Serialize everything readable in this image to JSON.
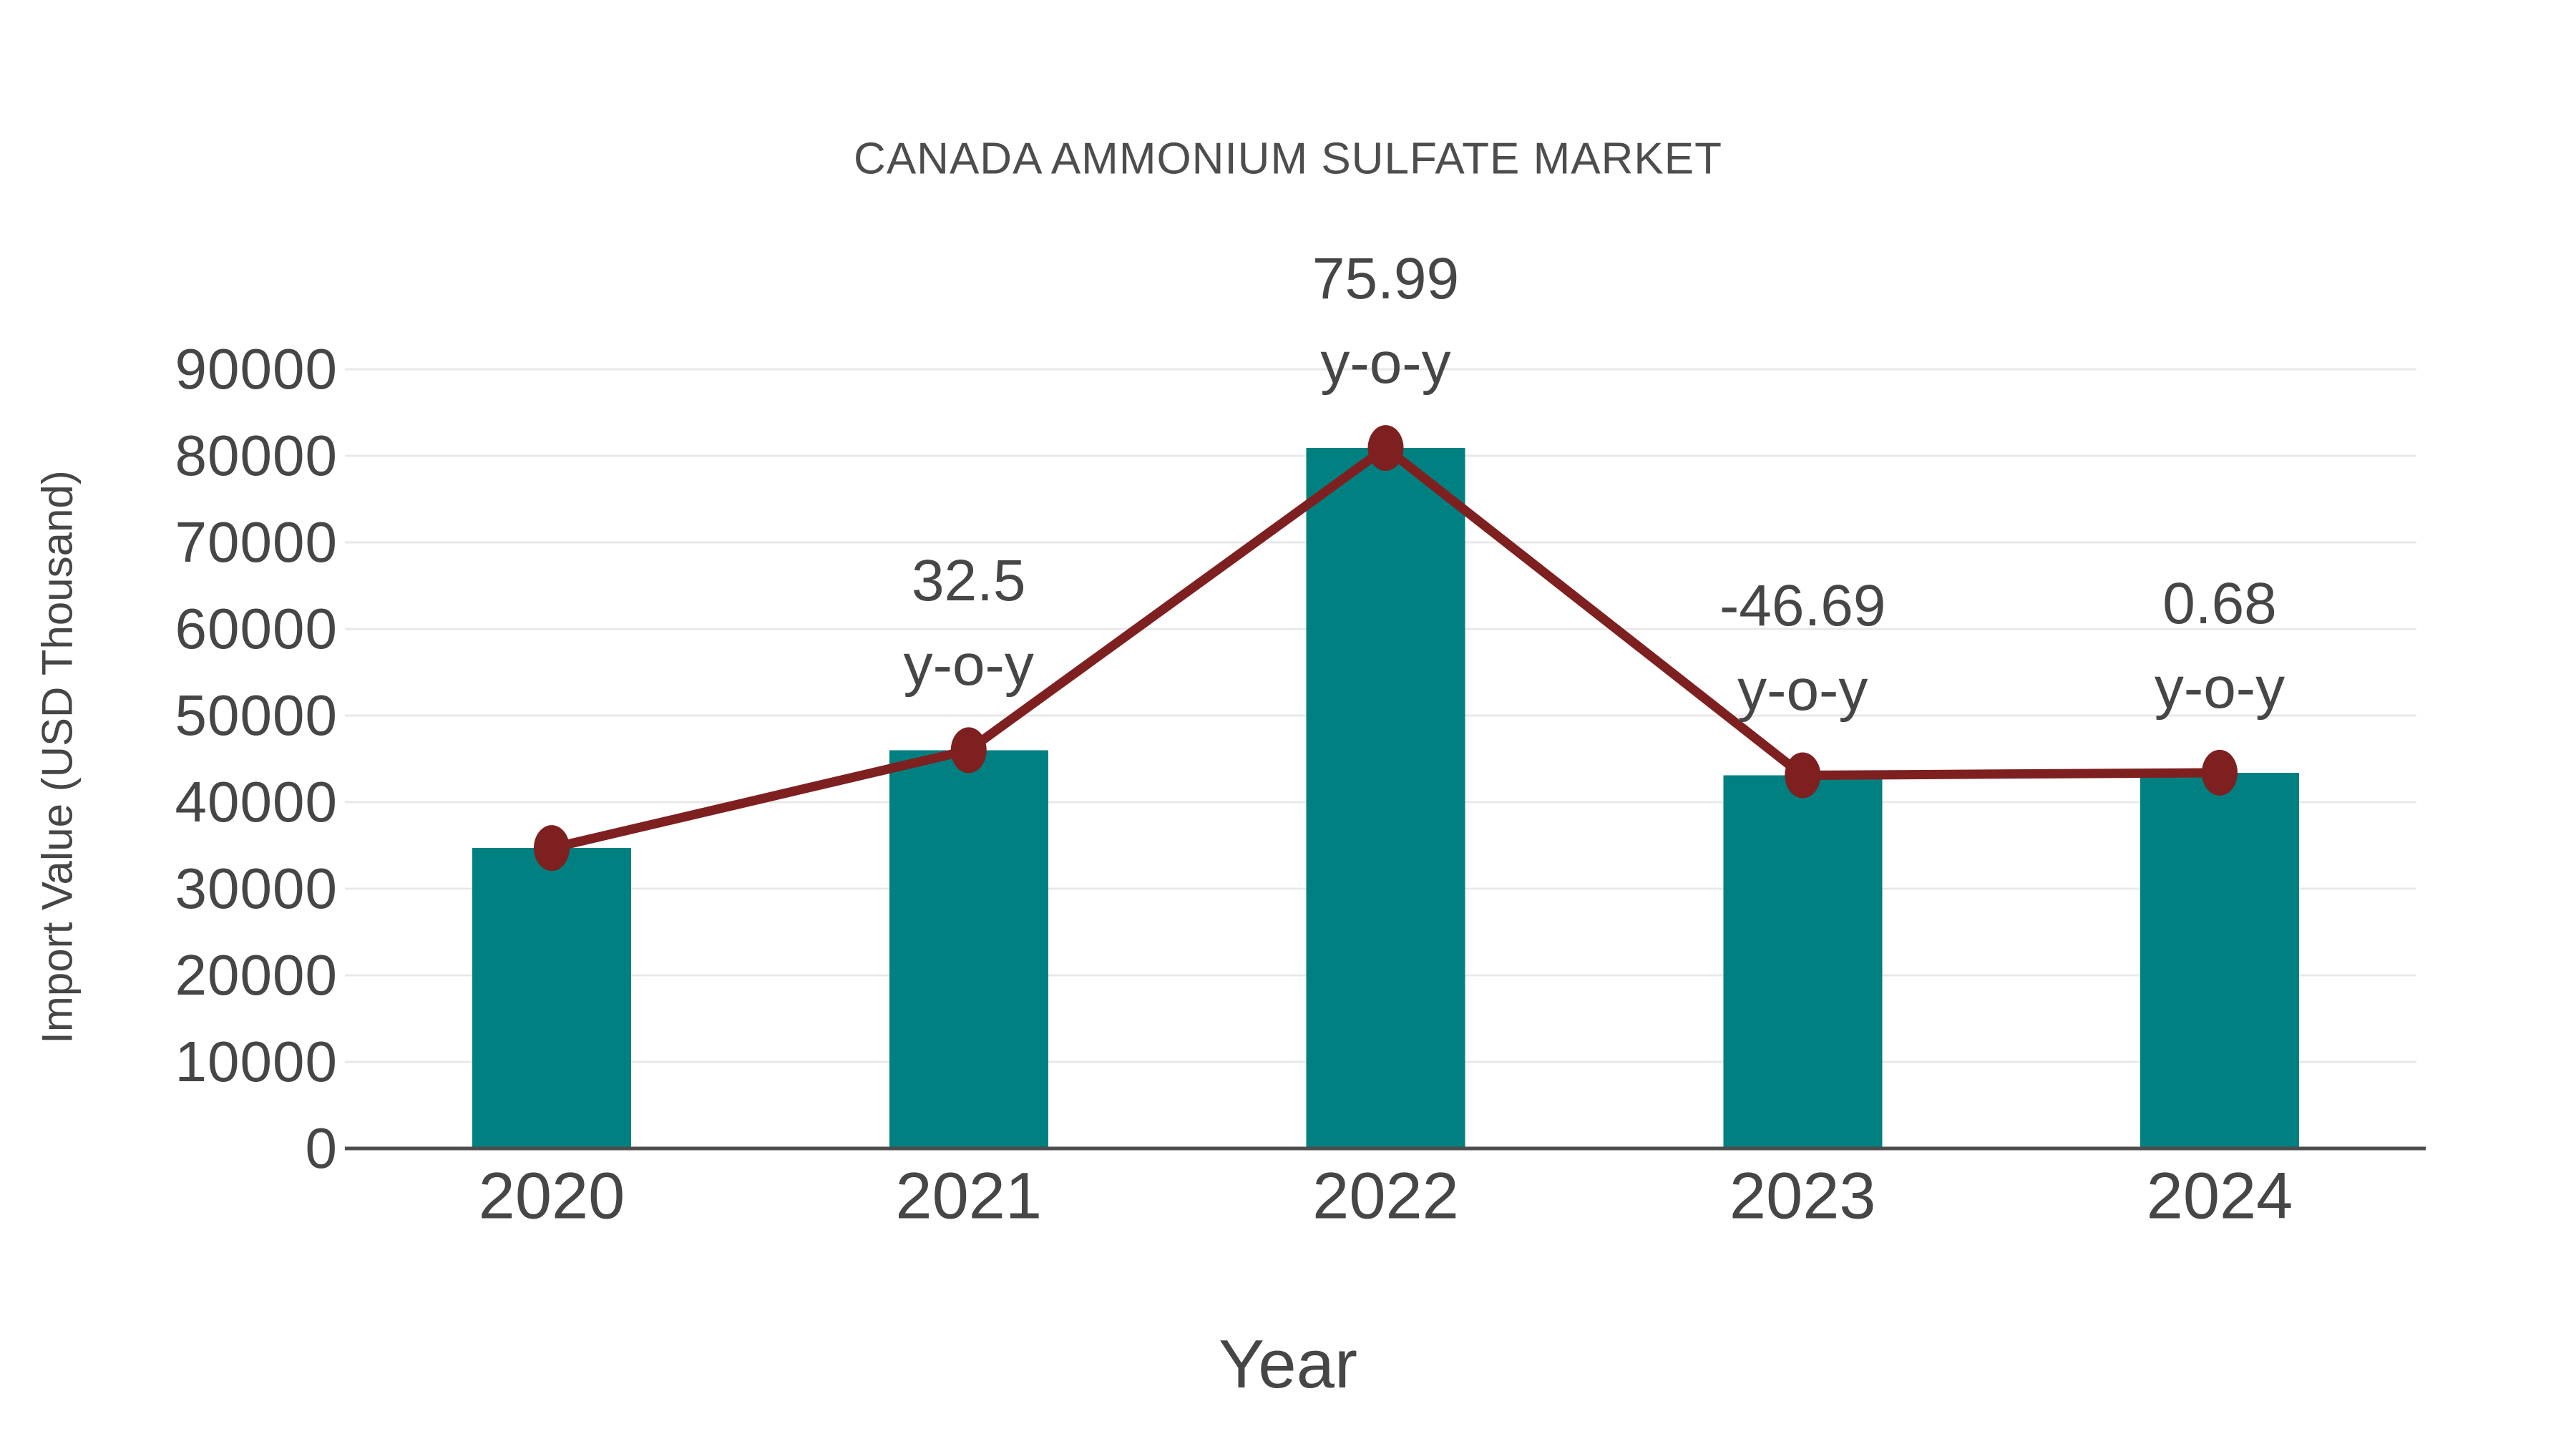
{
  "chart_data": {
    "type": "bar",
    "title": "CANADA AMMONIUM SULFATE MARKET",
    "xlabel": "Year",
    "ylabel": "Import Value (USD Thousand)",
    "categories": [
      "2020",
      "2021",
      "2022",
      "2023",
      "2024"
    ],
    "series": [
      {
        "name": "Import Value (USD Thousand)",
        "type": "bar",
        "color": "#008080",
        "values": [
          34700,
          46000,
          80900,
          43100,
          43400
        ]
      },
      {
        "name": "y-o-y",
        "type": "line",
        "color": "#7e2020",
        "values": [
          null,
          32.5,
          75.99,
          -46.69,
          0.68
        ]
      }
    ],
    "annotations": [
      {
        "category": "2021",
        "line1": "32.5",
        "line2": "y-o-y"
      },
      {
        "category": "2022",
        "line1": "75.99",
        "line2": "y-o-y"
      },
      {
        "category": "2023",
        "line1": "-46.69",
        "line2": "y-o-y"
      },
      {
        "category": "2024",
        "line1": "0.68",
        "line2": "y-o-y"
      }
    ],
    "y_ticks": [
      "0",
      "10000",
      "20000",
      "30000",
      "40000",
      "50000",
      "60000",
      "70000",
      "80000",
      "90000"
    ],
    "ylim": [
      0,
      90000
    ],
    "grid": "horizontal",
    "legend": "none",
    "colors": {
      "bar": "#008080",
      "line": "#7e2020",
      "grid": "#e8e8e8",
      "axis": "#4d4d4d",
      "text": "#464646"
    }
  }
}
